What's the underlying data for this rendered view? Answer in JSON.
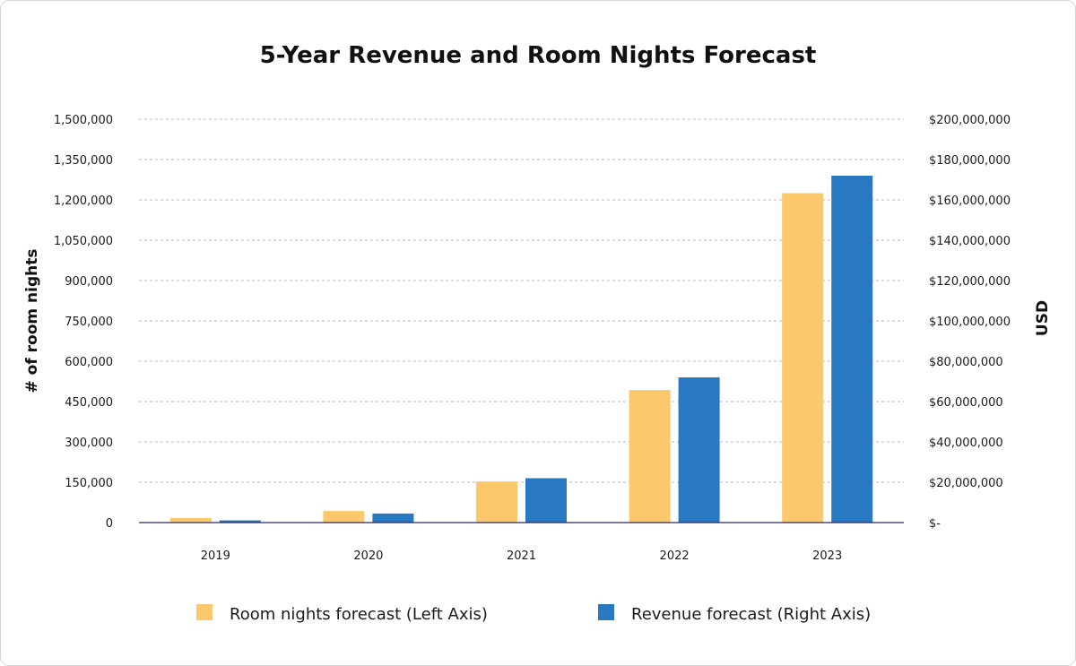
{
  "chart_data": {
    "type": "bar",
    "title": "5-Year Revenue and Room Nights Forecast",
    "categories": [
      "2019",
      "2020",
      "2021",
      "2022",
      "2023"
    ],
    "ylabel_left": "# of room nights",
    "ylabel_right": "USD",
    "ylim_left": [
      0,
      1500000
    ],
    "ylim_right": [
      0,
      200000000
    ],
    "left_ticks": [
      "0",
      "150,000",
      "300,000",
      "450,000",
      "600,000",
      "750,000",
      "900,000",
      "1,050,000",
      "1,200,000",
      "1,350,000",
      "1,500,000"
    ],
    "right_ticks": [
      "$-",
      "$20,000,000",
      "$40,000,000",
      "$60,000,000",
      "$80,000,000",
      "$100,000,000",
      "$120,000,000",
      "$140,000,000",
      "$160,000,000",
      "$180,000,000",
      "$200,000,000"
    ],
    "grid": true,
    "legend_position": "bottom",
    "series": [
      {
        "name": "Room nights forecast (Left Axis)",
        "axis": "left",
        "color": "#FCC86C",
        "values": [
          17000,
          43000,
          153000,
          493000,
          1225000
        ]
      },
      {
        "name": "Revenue forecast (Right Axis)",
        "axis": "right",
        "color": "#2878C2",
        "values": [
          1100000,
          4500000,
          22000000,
          72000000,
          172000000
        ]
      }
    ]
  }
}
